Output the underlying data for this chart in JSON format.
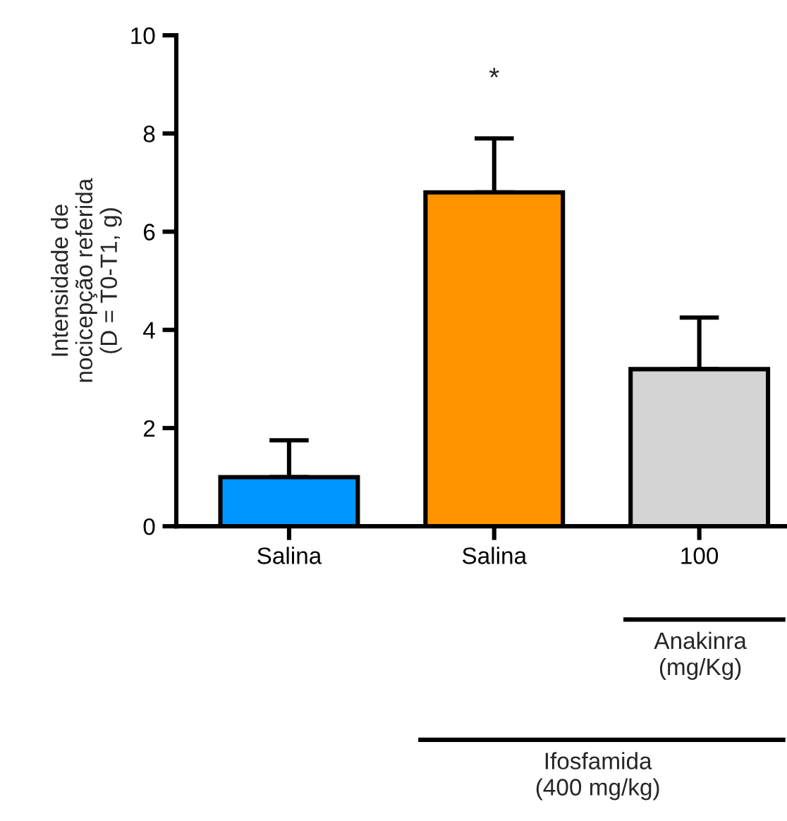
{
  "chart_data": {
    "type": "bar",
    "ylabel": "Intensidade de\nnocicepção referida\n(D = T0-T1, g)",
    "categories": [
      "Salina",
      "Salina",
      "100"
    ],
    "values": [
      1.0,
      6.8,
      3.2
    ],
    "errors": [
      0.75,
      1.1,
      1.05
    ],
    "colors": [
      "#0096ff",
      "#ff9400",
      "#d4d4d4"
    ],
    "ylim": [
      0,
      10
    ],
    "yticks": [
      0,
      2,
      4,
      6,
      8,
      10
    ],
    "grid": false,
    "legend": false,
    "annotations": [
      "*",
      "Anakinra\n(mg/Kg)",
      "Ifosfamida\n(400 mg/kg)"
    ]
  }
}
